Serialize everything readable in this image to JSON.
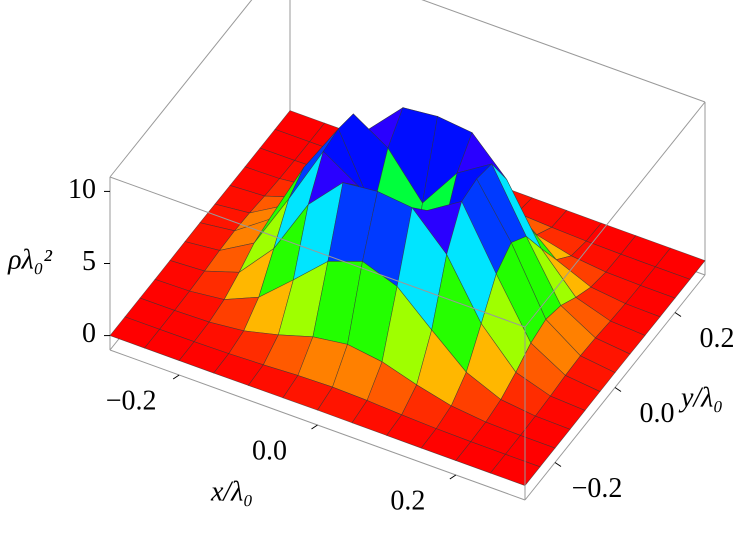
{
  "chart_data": {
    "type": "surface",
    "xlabel": "x/λ₀",
    "ylabel": "y/λ₀",
    "zlabel": "ρλ₀²",
    "x": [
      -0.3,
      -0.25,
      -0.2,
      -0.15,
      -0.1,
      -0.05,
      0,
      0.05,
      0.1,
      0.15,
      0.2,
      0.25,
      0.3
    ],
    "y": [
      -0.3,
      -0.25,
      -0.2,
      -0.15,
      -0.1,
      -0.05,
      0,
      0.05,
      0.1,
      0.15,
      0.2,
      0.25,
      0.3
    ],
    "z": [
      [
        0,
        0,
        0,
        0,
        0.01,
        0.02,
        0.03,
        0.02,
        0.01,
        0,
        0,
        0,
        0
      ],
      [
        0,
        0,
        0.01,
        0.05,
        0.14,
        0.27,
        0.33,
        0.27,
        0.14,
        0.05,
        0.01,
        0,
        0
      ],
      [
        0,
        0.01,
        0.07,
        0.33,
        0.92,
        1.65,
        1.99,
        1.65,
        0.92,
        0.33,
        0.07,
        0.01,
        0
      ],
      [
        0,
        0.05,
        0.33,
        1.36,
        3.43,
        5.58,
        6.45,
        5.58,
        3.43,
        1.36,
        0.33,
        0.05,
        0
      ],
      [
        0.01,
        0.14,
        0.92,
        3.43,
        7.36,
        9.74,
        10,
        9.74,
        7.36,
        3.43,
        0.92,
        0.14,
        0.01
      ],
      [
        0.02,
        0.27,
        1.65,
        5.58,
        9.74,
        8.24,
        5.29,
        8.24,
        9.74,
        5.58,
        1.65,
        0.27,
        0.02
      ],
      [
        0.03,
        0.33,
        1.99,
        6.45,
        10,
        5.29,
        0,
        5.29,
        10,
        6.45,
        1.99,
        0.33,
        0.03
      ],
      [
        0.02,
        0.27,
        1.65,
        5.58,
        9.74,
        8.24,
        5.29,
        8.24,
        9.74,
        5.58,
        1.65,
        0.27,
        0.02
      ],
      [
        0.01,
        0.14,
        0.92,
        3.43,
        7.36,
        9.74,
        10,
        9.74,
        7.36,
        3.43,
        0.92,
        0.14,
        0.01
      ],
      [
        0,
        0.05,
        0.33,
        1.36,
        3.43,
        5.58,
        6.45,
        5.58,
        3.43,
        1.36,
        0.33,
        0.05,
        0
      ],
      [
        0,
        0.01,
        0.07,
        0.33,
        0.92,
        1.65,
        1.99,
        1.65,
        0.92,
        0.33,
        0.07,
        0.01,
        0
      ],
      [
        0,
        0,
        0.01,
        0.05,
        0.14,
        0.27,
        0.33,
        0.27,
        0.14,
        0.05,
        0.01,
        0,
        0
      ],
      [
        0,
        0,
        0,
        0,
        0.01,
        0.02,
        0.03,
        0.02,
        0.01,
        0,
        0,
        0,
        0
      ]
    ],
    "xlim": [
      -0.3,
      0.3
    ],
    "ylim": [
      -0.3,
      0.3
    ],
    "zlim": [
      -1,
      11
    ],
    "xticks": [
      {
        "value": -0.2,
        "label": "−0.2"
      },
      {
        "value": 0,
        "label": "0.0"
      },
      0.2
    ],
    "yticks": [
      {
        "value": -0.2,
        "label": "−0.2"
      },
      {
        "value": 0,
        "label": "0.0"
      },
      0.2
    ],
    "zticks": [
      0,
      5,
      10
    ]
  }
}
